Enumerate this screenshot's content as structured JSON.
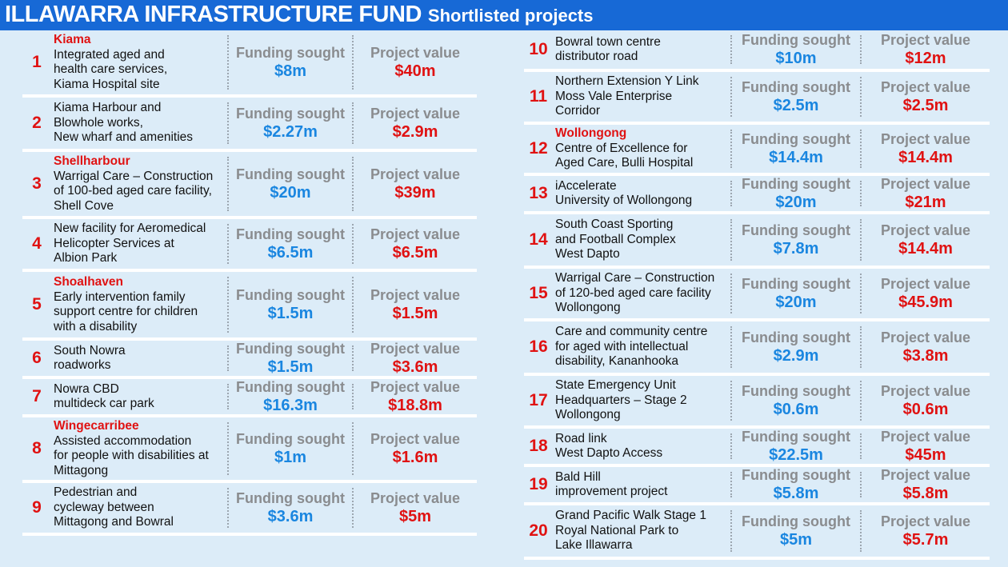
{
  "header": {
    "title": "ILLAWARRA INFRASTRUCTURE FUND",
    "subtitle": "Shortlisted projects"
  },
  "labels": {
    "funding": "Funding sought",
    "value": "Project value"
  },
  "left": [
    {
      "num": "1",
      "region": "Kiama",
      "lines": [
        "Integrated aged and",
        "health care services,",
        "Kiama Hospital site"
      ],
      "funding": "$8m",
      "value": "$40m",
      "h": 84
    },
    {
      "num": "2",
      "region": "",
      "lines": [
        "Kiama Harbour and",
        "Blowhole works,",
        "New wharf and amenities"
      ],
      "funding": "$2.27m",
      "value": "$2.9m",
      "h": 68
    },
    {
      "num": "3",
      "region": "Shellharbour",
      "lines": [
        "Warrigal Care – Construction",
        "of 100-bed aged care facility,",
        "Shell Cove"
      ],
      "funding": "$20m",
      "value": "$39m",
      "h": 84
    },
    {
      "num": "4",
      "region": "",
      "lines": [
        "New facility for Aeromedical",
        "Helicopter Services at",
        "Albion Park"
      ],
      "funding": "$6.5m",
      "value": "$6.5m",
      "h": 66
    },
    {
      "num": "5",
      "region": "Shoalhaven",
      "lines": [
        "Early intervention family",
        "support centre for children",
        "with a disability"
      ],
      "funding": "$1.5m",
      "value": "$1.5m",
      "h": 86
    },
    {
      "num": "6",
      "region": "",
      "lines": [
        "South Nowra",
        "roadworks"
      ],
      "funding": "$1.5m",
      "value": "$3.6m",
      "h": 48
    },
    {
      "num": "7",
      "region": "",
      "lines": [
        "Nowra CBD",
        "multideck car park"
      ],
      "funding": "$16.3m",
      "value": "$18.8m",
      "h": 48
    },
    {
      "num": "8",
      "region": "Wingecarribee",
      "lines": [
        "Assisted accommodation",
        "for people with disabilities at",
        "Mittagong"
      ],
      "funding": "$1m",
      "value": "$1.6m",
      "h": 82
    },
    {
      "num": "9",
      "region": "",
      "lines": [
        "Pedestrian and",
        "cycleway between",
        "Mittagong and Bowral"
      ],
      "funding": "$3.6m",
      "value": "$5m",
      "h": 66
    }
  ],
  "right": [
    {
      "num": "10",
      "region": "",
      "lines": [
        "Bowral town centre",
        "distributor road"
      ],
      "funding": "$10m",
      "value": "$12m",
      "h": 52
    },
    {
      "num": "11",
      "region": "",
      "lines": [
        "Northern Extension Y Link",
        "Moss Vale Enterprise",
        "Corridor"
      ],
      "funding": "$2.5m",
      "value": "$2.5m",
      "h": 66
    },
    {
      "num": "12",
      "region": "Wollongong",
      "lines": [
        "Centre of Excellence for",
        "Aged Care, Bulli Hospital"
      ],
      "funding": "$14.4m",
      "value": "$14.4m",
      "h": 64
    },
    {
      "num": "13",
      "region": "",
      "lines": [
        "iAccelerate",
        "University of Wollongong"
      ],
      "funding": "$20m",
      "value": "$21m",
      "h": 48
    },
    {
      "num": "14",
      "region": "",
      "lines": [
        "South Coast Sporting",
        "and Football Complex",
        "West Dapto"
      ],
      "funding": "$7.8m",
      "value": "$14.4m",
      "h": 68
    },
    {
      "num": "15",
      "region": "",
      "lines": [
        "Warrigal Care – Construction",
        "of 120-bed aged care facility",
        "Wollongong"
      ],
      "funding": "$20m",
      "value": "$45.9m",
      "h": 66
    },
    {
      "num": "16",
      "region": "",
      "lines": [
        "Care and community centre",
        "for aged with intellectual",
        "disability, Kananhooka"
      ],
      "funding": "$2.9m",
      "value": "$3.8m",
      "h": 68
    },
    {
      "num": "17",
      "region": "",
      "lines": [
        "State Emergency Unit",
        "Headquarters – Stage 2",
        "Wollongong"
      ],
      "funding": "$0.6m",
      "value": "$0.6m",
      "h": 66
    },
    {
      "num": "18",
      "region": "",
      "lines": [
        "Road link",
        "West Dapto Access"
      ],
      "funding": "$22.5m",
      "value": "$45m",
      "h": 48
    },
    {
      "num": "19",
      "region": "",
      "lines": [
        "Bald Hill",
        "improvement project"
      ],
      "funding": "$5.8m",
      "value": "$5.8m",
      "h": 48
    },
    {
      "num": "20",
      "region": "",
      "lines": [
        "Grand Pacific Walk Stage 1",
        "Royal National Park to",
        "Lake Illawarra"
      ],
      "funding": "$5m",
      "value": "$5.7m",
      "h": 68
    }
  ]
}
